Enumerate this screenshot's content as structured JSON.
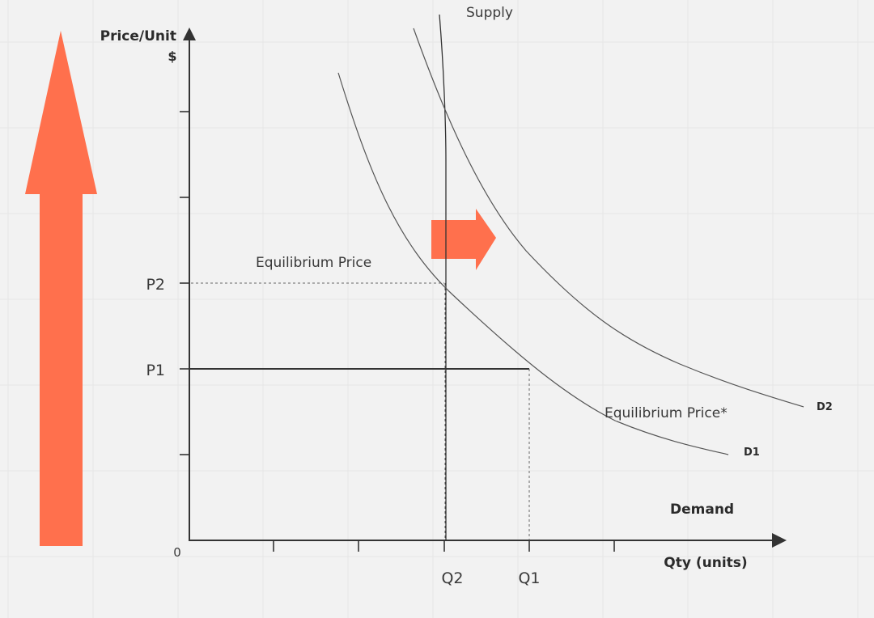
{
  "axes": {
    "y_title": "Price/Unit",
    "y_unit": "$",
    "x_title": "Qty (units)",
    "origin": "0",
    "p_labels": [
      "P2",
      "P1"
    ],
    "q_labels": [
      "Q2",
      "Q1"
    ]
  },
  "curves": {
    "supply": "Supply",
    "demand_1": "D1",
    "demand_2": "D2"
  },
  "annotations": {
    "equilibrium": "Equilibrium Price",
    "equilibrium_new": "Equilibrium Price*",
    "demand": "Demand"
  },
  "colors": {
    "arrow": "#ff704d",
    "axis": "#333333",
    "curve": "#555555",
    "background": "#f2f2f2",
    "grid": "#e6e6e6"
  },
  "icons": {
    "price_increase": "arrow-up",
    "demand_shift": "arrow-right"
  }
}
